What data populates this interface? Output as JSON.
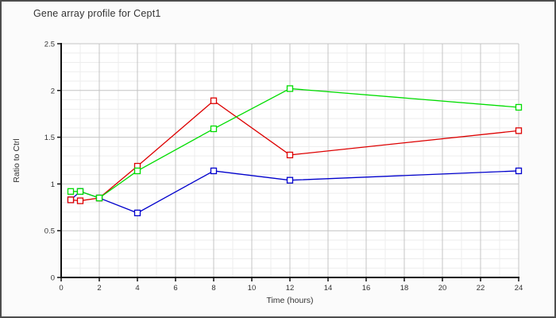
{
  "window": {
    "background_color": "#fbfbfb",
    "border_color": "#4d4d4d"
  },
  "chart_data": {
    "type": "line",
    "title": "Gene array profile for Cept1",
    "xlabel": "Time (hours)",
    "ylabel": "Ratio to Ctrl",
    "xlim": [
      0,
      24
    ],
    "ylim": [
      0,
      2.5
    ],
    "xticks": [
      0,
      2,
      4,
      6,
      8,
      10,
      12,
      14,
      16,
      18,
      20,
      22,
      24
    ],
    "yticks": [
      0,
      0.5,
      1,
      1.5,
      2,
      2.5
    ],
    "minor_grid": {
      "x_step": 1,
      "y_step": 0.1,
      "color": "#ededed"
    },
    "major_grid": {
      "x_step": 2,
      "y_step": 0.5,
      "color": "#c4c4c4"
    },
    "grid": "on",
    "legend": "none",
    "marker": "open-square",
    "x": [
      0.5,
      1,
      2,
      4,
      8,
      12,
      24
    ],
    "series": [
      {
        "name": "blue-series",
        "color": "#0000cc",
        "values": [
          0.83,
          0.92,
          0.85,
          0.69,
          1.14,
          1.04,
          1.14
        ]
      },
      {
        "name": "red-series",
        "color": "#dd0000",
        "values": [
          0.83,
          0.82,
          0.85,
          1.19,
          1.89,
          1.31,
          1.57
        ]
      },
      {
        "name": "green-series",
        "color": "#00dd00",
        "values": [
          0.92,
          0.92,
          0.85,
          1.14,
          1.59,
          2.02,
          1.82
        ]
      }
    ],
    "axis_color": "#111111",
    "text_color": "#333333",
    "plot_background": "#ffffff"
  }
}
